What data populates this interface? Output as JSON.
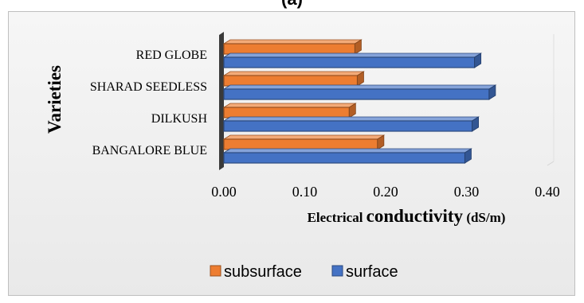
{
  "title": "(a)",
  "chart_data": {
    "type": "bar",
    "orientation": "horizontal",
    "style": "3d",
    "categories": [
      "BANGALORE BLUE",
      "DILKUSH",
      "SHARAD SEEDLESS",
      "RED GLOBE"
    ],
    "series": [
      {
        "name": "subsurface",
        "color": "#ed7d31",
        "values": [
          0.19,
          0.155,
          0.165,
          0.162
        ]
      },
      {
        "name": "surface",
        "color": "#4472c4",
        "values": [
          0.298,
          0.307,
          0.328,
          0.31
        ]
      }
    ],
    "xlabel_parts": [
      "Electrical ",
      "conductivity",
      " (dS/m)"
    ],
    "ylabel": "Varieties",
    "xlim": [
      0,
      0.4
    ],
    "xticks": [
      "0.00",
      "0.10",
      "0.20",
      "0.30",
      "0.40"
    ],
    "legend_position": "bottom",
    "grid": false
  }
}
